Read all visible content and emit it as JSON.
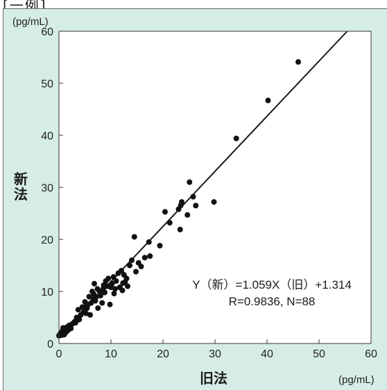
{
  "top_label": "[一例]",
  "chart_data": {
    "type": "scatter",
    "title": "",
    "xlabel": "旧法",
    "ylabel": "新法",
    "x_unit": "(pg/mL)",
    "y_unit": "(pg/mL)",
    "xlim": [
      0,
      60
    ],
    "ylim": [
      0,
      60
    ],
    "xticks": [
      0,
      10,
      20,
      30,
      40,
      50,
      60
    ],
    "yticks": [
      0,
      10,
      20,
      30,
      40,
      50,
      60
    ],
    "grid": false,
    "regression": {
      "slope": 1.059,
      "intercept": 1.314
    },
    "annotation": {
      "line1": "Y（新）=1.059X（旧）+1.314",
      "line2": "R=0.9836, N=88"
    },
    "points": [
      [
        0.0,
        1.5
      ],
      [
        0.2,
        1.8
      ],
      [
        0.4,
        2.1
      ],
      [
        0.5,
        1.6
      ],
      [
        0.7,
        2.5
      ],
      [
        0.8,
        3.0
      ],
      [
        1.0,
        1.7
      ],
      [
        1.2,
        2.8
      ],
      [
        1.4,
        2.2
      ],
      [
        1.6,
        3.2
      ],
      [
        2.0,
        3.5
      ],
      [
        2.3,
        2.9
      ],
      [
        2.6,
        3.8
      ],
      [
        3.0,
        4.2
      ],
      [
        3.4,
        5.0
      ],
      [
        3.7,
        6.5
      ],
      [
        3.9,
        4.6
      ],
      [
        4.2,
        5.5
      ],
      [
        4.5,
        7.0
      ],
      [
        4.7,
        6.0
      ],
      [
        5.0,
        8.0
      ],
      [
        5.2,
        5.8
      ],
      [
        5.4,
        6.8
      ],
      [
        5.6,
        7.5
      ],
      [
        5.8,
        9.0
      ],
      [
        6.0,
        5.5
      ],
      [
        6.2,
        7.8
      ],
      [
        6.4,
        10.0
      ],
      [
        6.6,
        8.5
      ],
      [
        6.7,
        9.5
      ],
      [
        6.8,
        11.5
      ],
      [
        7.0,
        8.2
      ],
      [
        7.2,
        9.0
      ],
      [
        7.4,
        10.5
      ],
      [
        7.5,
        6.8
      ],
      [
        7.8,
        10.0
      ],
      [
        8.0,
        9.2
      ],
      [
        8.3,
        7.8
      ],
      [
        8.5,
        10.5
      ],
      [
        8.8,
        9.8
      ],
      [
        9.0,
        12.0
      ],
      [
        9.3,
        11.0
      ],
      [
        9.5,
        12.5
      ],
      [
        9.8,
        7.5
      ],
      [
        10.0,
        10.8
      ],
      [
        10.2,
        11.5
      ],
      [
        10.5,
        12.8
      ],
      [
        10.8,
        10.5
      ],
      [
        11.0,
        12.0
      ],
      [
        11.4,
        13.5
      ],
      [
        11.7,
        10.8
      ],
      [
        12.0,
        14.0
      ],
      [
        12.2,
        10.2
      ],
      [
        12.5,
        13.2
      ],
      [
        12.7,
        11.8
      ],
      [
        13.0,
        12.5
      ],
      [
        13.2,
        11.0
      ],
      [
        13.6,
        15.0
      ],
      [
        14.0,
        16.0
      ],
      [
        14.5,
        20.5
      ],
      [
        14.8,
        13.8
      ],
      [
        15.3,
        15.5
      ],
      [
        15.8,
        14.8
      ],
      [
        16.5,
        16.5
      ],
      [
        17.3,
        19.5
      ],
      [
        17.5,
        16.8
      ],
      [
        19.4,
        18.8
      ],
      [
        20.4,
        25.3
      ],
      [
        21.3,
        23.2
      ],
      [
        23.0,
        25.8
      ],
      [
        23.3,
        21.9
      ],
      [
        23.4,
        26.5
      ],
      [
        23.6,
        27.2
      ],
      [
        24.7,
        24.7
      ],
      [
        25.1,
        31.0
      ],
      [
        25.8,
        28.2
      ],
      [
        26.3,
        26.5
      ],
      [
        29.8,
        27.2
      ],
      [
        34.1,
        39.4
      ],
      [
        40.2,
        46.7
      ],
      [
        46.0,
        54.1
      ],
      [
        3.2,
        4.0
      ],
      [
        5.3,
        7.2
      ],
      [
        6.9,
        8.9
      ],
      [
        8.6,
        11.2
      ],
      [
        10.6,
        9.6
      ],
      [
        12.3,
        11.6
      ],
      [
        1.8,
        2.6
      ]
    ]
  }
}
